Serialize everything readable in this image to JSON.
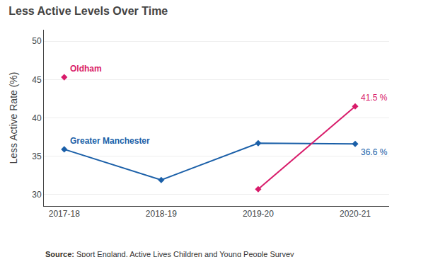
{
  "chart_data": {
    "type": "line",
    "title": "Less Active Levels Over Time",
    "y_label": "Less Active Rate (%)",
    "source": "Source: Sport England, Active Lives Children and Young People Survey",
    "categories": [
      "2017-18",
      "2018-19",
      "2019-20",
      "2020-21"
    ],
    "series": [
      {
        "name": "Greater Manchester",
        "color": "#1a5fa8",
        "marker": "diamond",
        "values": [
          35.9,
          31.9,
          36.7,
          36.6
        ]
      },
      {
        "name": "Oldham",
        "color": "#d81b6a",
        "marker": "diamond",
        "values": [
          45.3,
          null,
          30.7,
          41.5
        ]
      }
    ],
    "annotations": [
      {
        "text": "41.5 %",
        "x": "2020-21",
        "y": 41.5,
        "color": "#d81b6a"
      },
      {
        "text": "36.6 %",
        "x": "2020-21",
        "y": 36.6,
        "color": "#1a5fa8"
      },
      {
        "text": "Oldham",
        "x": "2017-18",
        "y": 45.3,
        "color": "#d81b6a"
      },
      {
        "text": "Greater Manchester",
        "x": "2017-18",
        "y": 35.9,
        "color": "#1a5fa8"
      }
    ],
    "ylim": [
      28.5,
      51.5
    ],
    "yticks": [
      30,
      35,
      40,
      45,
      50
    ],
    "grid": true
  }
}
